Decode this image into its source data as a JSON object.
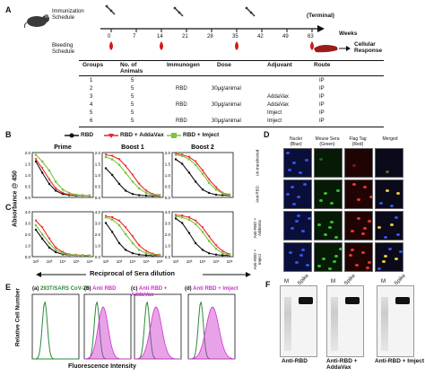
{
  "panel_letters": [
    "A",
    "B",
    "C",
    "D",
    "E",
    "F"
  ],
  "schedule": {
    "immunization_label": "Immunization Schedule",
    "bleeding_label": "Bleeding Schedule",
    "weeks_label": "Weeks",
    "terminal_label": "(Terminal)",
    "cellular_label": "Cellular Response",
    "ticks": [
      "0",
      "7",
      "14",
      "21",
      "28",
      "35",
      "42",
      "49",
      "63"
    ]
  },
  "table": {
    "headers": [
      "Groups",
      "No. of Animals",
      "Immunogen",
      "Dose",
      "Adjuvant",
      "Route"
    ],
    "rows": [
      [
        "1",
        "5",
        "",
        "",
        "",
        "IP"
      ],
      [
        "2",
        "5",
        "RBD",
        "30μg/animal",
        "",
        "IP"
      ],
      [
        "3",
        "5",
        "",
        "",
        "AddaVax",
        "IP"
      ],
      [
        "4",
        "5",
        "RBD",
        "30μg/animal",
        "AddaVax",
        "IP"
      ],
      [
        "5",
        "5",
        "",
        "",
        "Imject",
        "IP"
      ],
      [
        "6",
        "5",
        "RBD",
        "30μg/animal",
        "Imject",
        "IP"
      ]
    ]
  },
  "legend": {
    "items": [
      {
        "label": "RBD",
        "color": "#111111"
      },
      {
        "label": "RBD + AddaVax",
        "color": "#e8262b"
      },
      {
        "label": "RBD + Imject",
        "color": "#7ec43d"
      }
    ]
  },
  "elisa": {
    "ylabel": "Absorbance @ 450",
    "xlabel": "Reciprocal of Sera dilution",
    "titles": [
      "Prime",
      "Boost 1",
      "Boost 2"
    ],
    "yticks_B": [
      "0.0",
      "0.5",
      "1.0",
      "1.5",
      "2.0"
    ],
    "yticks_C": [
      "0.0",
      "1.0",
      "2.0",
      "3.0",
      "4.0"
    ],
    "xticks": [
      "10²",
      "10³",
      "10⁴",
      "10⁵",
      "10⁶"
    ]
  },
  "chart_data": [
    {
      "panel": "B",
      "title": "Prime",
      "type": "line",
      "ylim": [
        0,
        2
      ],
      "x": [
        100,
        300,
        1000,
        3000,
        10000,
        30000,
        100000,
        300000,
        1000000
      ],
      "series": [
        {
          "name": "RBD",
          "values": [
            1.6,
            1.1,
            0.6,
            0.3,
            0.15,
            0.1,
            0.08,
            0.08,
            0.07
          ]
        },
        {
          "name": "RBD + AddaVax",
          "values": [
            1.7,
            1.3,
            0.8,
            0.4,
            0.2,
            0.12,
            0.1,
            0.08,
            0.08
          ]
        },
        {
          "name": "RBD + Imject",
          "values": [
            1.9,
            1.6,
            1.2,
            0.7,
            0.35,
            0.2,
            0.12,
            0.1,
            0.08
          ]
        }
      ]
    },
    {
      "panel": "B",
      "title": "Boost 1",
      "type": "line",
      "ylim": [
        0,
        2
      ],
      "x": [
        100,
        300,
        1000,
        3000,
        10000,
        30000,
        100000,
        300000,
        1000000
      ],
      "series": [
        {
          "name": "RBD",
          "values": [
            1.3,
            1.0,
            0.6,
            0.3,
            0.15,
            0.1,
            0.08,
            0.07,
            0.07
          ]
        },
        {
          "name": "RBD + AddaVax",
          "values": [
            1.9,
            1.85,
            1.7,
            1.4,
            1.0,
            0.6,
            0.3,
            0.15,
            0.1
          ]
        },
        {
          "name": "RBD + Imject",
          "values": [
            1.8,
            1.7,
            1.45,
            1.1,
            0.7,
            0.4,
            0.2,
            0.12,
            0.09
          ]
        }
      ]
    },
    {
      "panel": "B",
      "title": "Boost 2",
      "type": "line",
      "ylim": [
        0,
        2
      ],
      "x": [
        100,
        300,
        1000,
        3000,
        10000,
        30000,
        100000,
        300000,
        1000000
      ],
      "series": [
        {
          "name": "RBD",
          "values": [
            1.7,
            1.5,
            1.1,
            0.7,
            0.35,
            0.2,
            0.12,
            0.1,
            0.08
          ]
        },
        {
          "name": "RBD + AddaVax",
          "values": [
            1.95,
            1.9,
            1.8,
            1.6,
            1.2,
            0.8,
            0.45,
            0.2,
            0.12
          ]
        },
        {
          "name": "RBD + Imject",
          "values": [
            1.9,
            1.85,
            1.7,
            1.45,
            1.05,
            0.65,
            0.35,
            0.18,
            0.1
          ]
        }
      ]
    },
    {
      "panel": "C",
      "title": "Prime",
      "type": "line",
      "ylim": [
        0,
        4
      ],
      "x": [
        100,
        300,
        1000,
        3000,
        10000,
        30000,
        100000,
        300000,
        1000000
      ],
      "series": [
        {
          "name": "RBD",
          "values": [
            2.4,
            1.6,
            0.8,
            0.4,
            0.2,
            0.15,
            0.12,
            0.1,
            0.1
          ]
        },
        {
          "name": "RBD + AddaVax",
          "values": [
            3.2,
            2.6,
            1.6,
            0.8,
            0.4,
            0.2,
            0.15,
            0.12,
            0.1
          ]
        },
        {
          "name": "RBD + Imject",
          "values": [
            2.8,
            2.0,
            1.2,
            0.6,
            0.3,
            0.18,
            0.13,
            0.1,
            0.1
          ]
        }
      ]
    },
    {
      "panel": "C",
      "title": "Boost 1",
      "type": "line",
      "ylim": [
        0,
        4
      ],
      "x": [
        100,
        300,
        1000,
        3000,
        10000,
        30000,
        100000,
        300000,
        1000000
      ],
      "series": [
        {
          "name": "RBD",
          "values": [
            3.0,
            2.2,
            1.2,
            0.6,
            0.3,
            0.18,
            0.12,
            0.1,
            0.1
          ]
        },
        {
          "name": "RBD + AddaVax",
          "values": [
            3.6,
            3.5,
            3.2,
            2.6,
            1.8,
            1.0,
            0.5,
            0.25,
            0.15
          ]
        },
        {
          "name": "RBD + Imject",
          "values": [
            3.5,
            3.3,
            2.8,
            2.0,
            1.2,
            0.6,
            0.3,
            0.18,
            0.12
          ]
        }
      ]
    },
    {
      "panel": "C",
      "title": "Boost 2",
      "type": "line",
      "ylim": [
        0,
        4
      ],
      "x": [
        100,
        300,
        1000,
        3000,
        10000,
        30000,
        100000,
        300000,
        1000000
      ],
      "series": [
        {
          "name": "RBD",
          "values": [
            3.4,
            3.0,
            2.1,
            1.2,
            0.6,
            0.3,
            0.18,
            0.12,
            0.1
          ]
        },
        {
          "name": "RBD + AddaVax",
          "values": [
            3.7,
            3.65,
            3.5,
            3.2,
            2.6,
            1.8,
            1.0,
            0.5,
            0.2
          ]
        },
        {
          "name": "RBD + Imject",
          "values": [
            3.6,
            3.5,
            3.3,
            2.9,
            2.2,
            1.4,
            0.7,
            0.3,
            0.15
          ]
        }
      ]
    }
  ],
  "microscopy": {
    "col_headers": [
      "Nuclei (Blue)",
      "Mouse Sera (Green)",
      "Flag Tag (Red)",
      "Merged"
    ],
    "row_labels": [
      "Un-transfected",
      "Anti-RBD",
      "Anti-RBD + AddaVax",
      "Anti-RBD + Imject"
    ]
  },
  "facs": {
    "ylabel": "Relative Cell Number",
    "xlabel": "Fluorescence Intensity",
    "panels": [
      {
        "letter": "(a)",
        "title": "293T/SARS CoV-2S",
        "color": "#2c8a3a"
      },
      {
        "letter": "(b)",
        "title": "Anti RBD",
        "color": "#cc33cc"
      },
      {
        "letter": "(c)",
        "title": "Anti RBD + AddaVax",
        "color": "#cc33cc"
      },
      {
        "letter": "(d)",
        "title": "Anti RBD + Imject",
        "color": "#cc33cc"
      }
    ]
  },
  "western": {
    "lane_labels": [
      "M",
      "Spike"
    ],
    "blots": [
      "Anti-RBD",
      "Anti-RBD + AddaVax",
      "Anti-RBD + Imject"
    ]
  }
}
